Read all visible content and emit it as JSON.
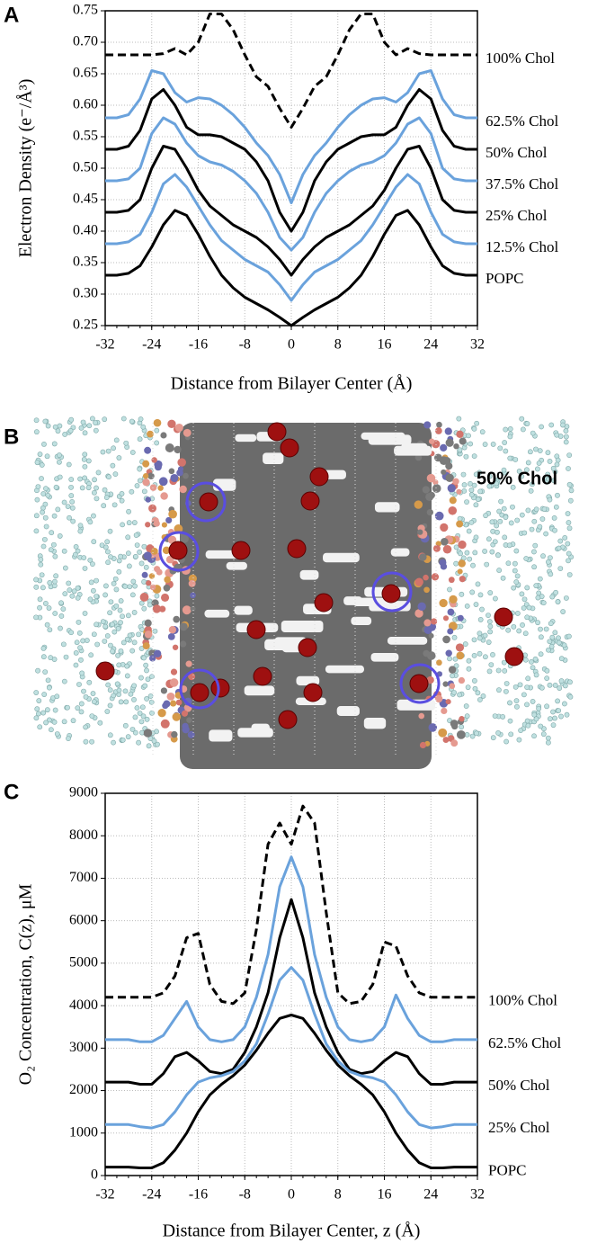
{
  "chart_data": [
    {
      "type": "line",
      "panel_label": "A",
      "x_label": "Distance from Bilayer Center (Å)",
      "y_label": "Electron Density (e⁻/Å³)",
      "x": [
        -32,
        -30,
        -28,
        -26,
        -24,
        -22,
        -20,
        -18,
        -16,
        -14,
        -12,
        -10,
        -8,
        -6,
        -4,
        -2,
        0,
        2,
        4,
        6,
        8,
        10,
        12,
        14,
        16,
        18,
        20,
        22,
        24,
        26,
        28,
        30,
        32
      ],
      "xlim": [
        -32,
        32
      ],
      "xticks": [
        -32,
        -24,
        -16,
        -8,
        0,
        8,
        16,
        24,
        32
      ],
      "ylim": [
        0.25,
        0.75
      ],
      "yticks": [
        0.25,
        {
          "value": 0.3,
          "label": "0.30"
        },
        0.35,
        {
          "value": 0.4,
          "label": "0.40"
        },
        0.45,
        {
          "value": 0.5,
          "label": "0.50"
        },
        0.55,
        {
          "value": 0.6,
          "label": "0.60"
        },
        0.65,
        {
          "value": 0.7,
          "label": "0.70"
        },
        0.75
      ],
      "grid": true,
      "series": [
        {
          "name": "100% Chol",
          "color": "#000000",
          "dashed": true,
          "values": [
            0.68,
            0.68,
            0.68,
            0.68,
            0.68,
            0.682,
            0.69,
            0.68,
            0.7,
            0.745,
            0.745,
            0.72,
            0.68,
            0.645,
            0.63,
            0.595,
            0.565,
            0.595,
            0.63,
            0.645,
            0.68,
            0.72,
            0.745,
            0.745,
            0.7,
            0.68,
            0.69,
            0.682,
            0.68,
            0.68,
            0.68,
            0.68,
            0.68
          ]
        },
        {
          "name": "62.5% Chol",
          "color": "#6aa2dc",
          "values": [
            0.58,
            0.58,
            0.585,
            0.61,
            0.655,
            0.65,
            0.62,
            0.605,
            0.612,
            0.61,
            0.6,
            0.585,
            0.565,
            0.54,
            0.52,
            0.49,
            0.445,
            0.49,
            0.52,
            0.54,
            0.565,
            0.585,
            0.6,
            0.61,
            0.612,
            0.605,
            0.62,
            0.65,
            0.655,
            0.61,
            0.585,
            0.58,
            0.58
          ]
        },
        {
          "name": "50% Chol",
          "color": "#000000",
          "values": [
            0.53,
            0.53,
            0.535,
            0.56,
            0.61,
            0.625,
            0.6,
            0.565,
            0.553,
            0.553,
            0.55,
            0.54,
            0.53,
            0.51,
            0.48,
            0.43,
            0.4,
            0.43,
            0.48,
            0.51,
            0.53,
            0.54,
            0.55,
            0.553,
            0.553,
            0.565,
            0.6,
            0.625,
            0.61,
            0.56,
            0.535,
            0.53,
            0.53
          ]
        },
        {
          "name": "37.5% Chol",
          "color": "#6aa2dc",
          "values": [
            0.48,
            0.48,
            0.483,
            0.5,
            0.555,
            0.58,
            0.57,
            0.54,
            0.52,
            0.51,
            0.505,
            0.495,
            0.48,
            0.46,
            0.43,
            0.39,
            0.37,
            0.39,
            0.43,
            0.46,
            0.48,
            0.495,
            0.505,
            0.51,
            0.52,
            0.54,
            0.57,
            0.58,
            0.555,
            0.5,
            0.483,
            0.48,
            0.48
          ]
        },
        {
          "name": "25% Chol",
          "color": "#000000",
          "values": [
            0.43,
            0.43,
            0.433,
            0.45,
            0.5,
            0.535,
            0.53,
            0.5,
            0.465,
            0.44,
            0.425,
            0.41,
            0.4,
            0.39,
            0.375,
            0.355,
            0.33,
            0.355,
            0.375,
            0.39,
            0.4,
            0.41,
            0.425,
            0.44,
            0.465,
            0.5,
            0.53,
            0.535,
            0.5,
            0.45,
            0.433,
            0.43,
            0.43
          ]
        },
        {
          "name": "12.5% Chol",
          "color": "#6aa2dc",
          "values": [
            0.38,
            0.38,
            0.383,
            0.395,
            0.43,
            0.475,
            0.49,
            0.47,
            0.44,
            0.41,
            0.385,
            0.37,
            0.355,
            0.345,
            0.335,
            0.315,
            0.29,
            0.315,
            0.335,
            0.345,
            0.355,
            0.37,
            0.385,
            0.41,
            0.44,
            0.47,
            0.49,
            0.475,
            0.43,
            0.395,
            0.383,
            0.38,
            0.38
          ]
        },
        {
          "name": "POPC",
          "color": "#000000",
          "values": [
            0.33,
            0.33,
            0.333,
            0.345,
            0.375,
            0.41,
            0.433,
            0.425,
            0.395,
            0.36,
            0.33,
            0.31,
            0.295,
            0.285,
            0.275,
            0.263,
            0.25,
            0.263,
            0.275,
            0.285,
            0.295,
            0.31,
            0.33,
            0.36,
            0.395,
            0.425,
            0.433,
            0.41,
            0.375,
            0.345,
            0.333,
            0.33,
            0.33
          ]
        }
      ]
    },
    {
      "type": "line",
      "panel_label": "C",
      "x_label": "Distance from Bilayer Center, z (Å)",
      "y_label": "O₂ Concentration, C(z), μM",
      "x": [
        -32,
        -30,
        -28,
        -26,
        -24,
        -22,
        -20,
        -18,
        -16,
        -14,
        -12,
        -10,
        -8,
        -6,
        -4,
        -2,
        0,
        2,
        4,
        6,
        8,
        10,
        12,
        14,
        16,
        18,
        20,
        22,
        24,
        26,
        28,
        30,
        32
      ],
      "xlim": [
        -32,
        32
      ],
      "xticks": [
        -32,
        -24,
        -16,
        -8,
        0,
        8,
        16,
        24,
        32
      ],
      "ylim": [
        0,
        9000
      ],
      "yticks": [
        0,
        1000,
        2000,
        3000,
        4000,
        5000,
        6000,
        7000,
        8000,
        9000
      ],
      "grid": true,
      "series": [
        {
          "name": "100% Chol",
          "color": "#000000",
          "dashed": true,
          "values": [
            4200,
            4200,
            4200,
            4200,
            4200,
            4300,
            4700,
            5600,
            5700,
            4500,
            4100,
            4050,
            4300,
            5800,
            7800,
            8300,
            7800,
            8700,
            8300,
            6200,
            4300,
            4050,
            4100,
            4500,
            5500,
            5400,
            4700,
            4300,
            4200,
            4200,
            4200,
            4200,
            4200
          ]
        },
        {
          "name": "62.5% Chol",
          "color": "#6aa2dc",
          "values": [
            3200,
            3200,
            3200,
            3150,
            3150,
            3300,
            3700,
            4100,
            3500,
            3200,
            3150,
            3200,
            3500,
            4200,
            5200,
            6800,
            7500,
            6800,
            5200,
            4200,
            3500,
            3200,
            3150,
            3200,
            3500,
            4250,
            3700,
            3300,
            3150,
            3150,
            3200,
            3200,
            3200
          ]
        },
        {
          "name": "50% Chol",
          "color": "#000000",
          "values": [
            2200,
            2200,
            2200,
            2150,
            2150,
            2400,
            2800,
            2900,
            2700,
            2450,
            2400,
            2500,
            2900,
            3500,
            4300,
            5600,
            6500,
            5600,
            4300,
            3500,
            2900,
            2500,
            2400,
            2450,
            2700,
            2900,
            2800,
            2400,
            2150,
            2150,
            2200,
            2200,
            2200
          ]
        },
        {
          "name": "25% Chol",
          "color": "#6aa2dc",
          "values": [
            1200,
            1200,
            1200,
            1150,
            1120,
            1200,
            1500,
            1900,
            2200,
            2300,
            2350,
            2450,
            2700,
            3100,
            3800,
            4600,
            4900,
            4600,
            3800,
            3100,
            2700,
            2450,
            2350,
            2300,
            2200,
            1900,
            1500,
            1200,
            1120,
            1150,
            1200,
            1200,
            1200
          ]
        },
        {
          "name": "POPC",
          "color": "#000000",
          "values": [
            200,
            200,
            200,
            180,
            180,
            300,
            600,
            1000,
            1500,
            1900,
            2150,
            2350,
            2600,
            2950,
            3350,
            3700,
            3780,
            3700,
            3350,
            2950,
            2600,
            2350,
            2150,
            1900,
            1500,
            1000,
            600,
            300,
            180,
            180,
            200,
            200,
            200
          ]
        }
      ]
    }
  ],
  "image_panel": {
    "label": "B",
    "caption": "50% Chol"
  }
}
